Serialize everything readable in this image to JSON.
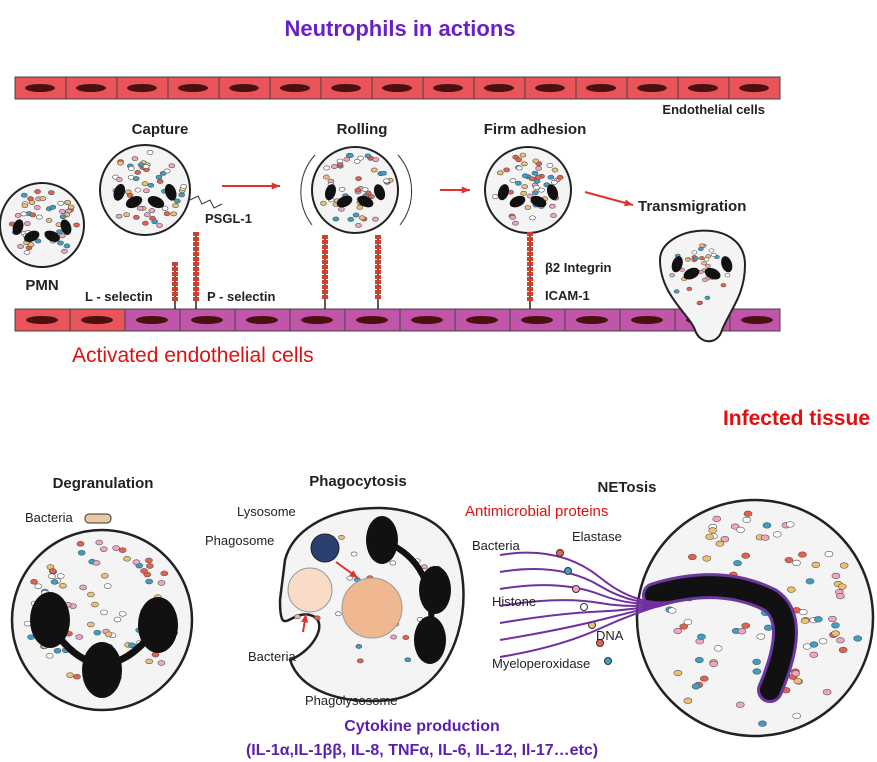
{
  "title": "Neutrophils in actions",
  "top": {
    "vessel_label": "Endothelial cells",
    "stages": [
      "Capture",
      "Rolling",
      "Firm adhesion",
      "Transmigration"
    ],
    "pmn": "PMN",
    "psgl": "PSGL-1",
    "l_selectin": "L - selectin",
    "p_selectin": "P - selectin",
    "integrin": "β2 Integrin",
    "icam": "ICAM-1",
    "activated": "Activated endothelial cells"
  },
  "infected": "Infected tissue",
  "degranulation": {
    "title": "Degranulation",
    "bacteria": "Bacteria"
  },
  "phagocytosis": {
    "title": "Phagocytosis",
    "lysosome": "Lysosome",
    "phagosome": "Phagosome",
    "bacteria": "Bacteria",
    "phagolysosome": "Phagolysosome"
  },
  "netosis": {
    "title": "NETosis",
    "antimicrobial": "Antimicrobial proteins",
    "bacteria": "Bacteria",
    "elastase": "Elastase",
    "histone": "Histone",
    "dna": "DNA",
    "mpo": "Myeloperoxidase"
  },
  "cytokine": {
    "title": "Cytokine production",
    "list": "(IL-1α,IL-1ββ, IL-8, TNFα, IL-6, IL-12, Il-17…etc)"
  }
}
